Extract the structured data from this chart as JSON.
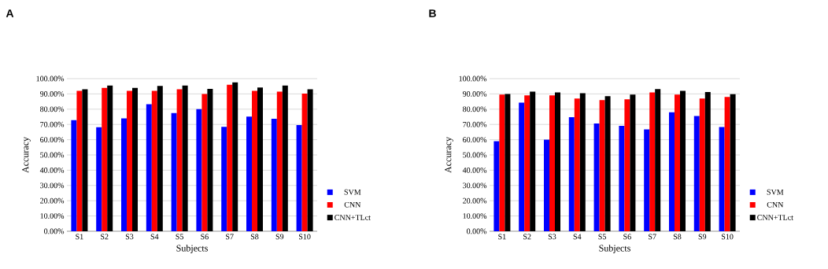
{
  "chart_data": [
    {
      "type": "bar",
      "title": "A",
      "xlabel": "Subjects",
      "ylabel": "Accuracy",
      "categories": [
        "S1",
        "S2",
        "S3",
        "S4",
        "S5",
        "S6",
        "S7",
        "S8",
        "S9",
        "S10"
      ],
      "series": [
        {
          "name": "SVM",
          "color": "#0000ff",
          "values": [
            72.8,
            68.2,
            74,
            83.2,
            77.4,
            80,
            68.4,
            75.1,
            73.7,
            69.6
          ]
        },
        {
          "name": "CNN",
          "color": "#ff0000",
          "values": [
            92,
            94,
            92,
            92,
            93,
            90,
            96,
            92,
            91.5,
            90.2
          ]
        },
        {
          "name": "CNN+TLct",
          "color": "#000000",
          "values": [
            93,
            95.5,
            94,
            95.2,
            95.5,
            93.3,
            97.5,
            94.2,
            95.5,
            93
          ]
        }
      ],
      "ylim": [
        0,
        100
      ],
      "yticks": [
        {
          "value": 0,
          "label": "0.00%"
        },
        {
          "value": 10,
          "label": "10.00%"
        },
        {
          "value": 20,
          "label": "20.00%"
        },
        {
          "value": 30,
          "label": "30.00%"
        },
        {
          "value": 40,
          "label": "40.00%"
        },
        {
          "value": 50,
          "label": "50.00%"
        },
        {
          "value": 60,
          "label": "60.00%"
        },
        {
          "value": 70,
          "label": "70.00%"
        },
        {
          "value": 80,
          "label": "80.00%"
        },
        {
          "value": 90,
          "label": "90.00%"
        },
        {
          "value": 100,
          "label": "100.00%"
        }
      ],
      "grid": "y",
      "legend": "right"
    },
    {
      "type": "bar",
      "title": "B",
      "xlabel": "Subjects",
      "ylabel": "Accuracy",
      "categories": [
        "S1",
        "S2",
        "S3",
        "S4",
        "S5",
        "S6",
        "S7",
        "S8",
        "S9",
        "S10"
      ],
      "series": [
        {
          "name": "SVM",
          "color": "#0000ff",
          "values": [
            59,
            84.3,
            60,
            74.8,
            70.6,
            69.1,
            66.8,
            78,
            75.5,
            68.3
          ]
        },
        {
          "name": "CNN",
          "color": "#ff0000",
          "values": [
            89.5,
            89,
            89,
            87,
            86,
            86.5,
            91,
            89.5,
            87,
            88
          ]
        },
        {
          "name": "CNN+TLct",
          "color": "#000000",
          "values": [
            90,
            91.5,
            91,
            90.5,
            88.5,
            89.5,
            93.2,
            92,
            91.2,
            89.8
          ]
        }
      ],
      "ylim": [
        0,
        100
      ],
      "yticks": [
        {
          "value": 0,
          "label": "0.00%"
        },
        {
          "value": 10,
          "label": "10.00%"
        },
        {
          "value": 20,
          "label": "20.00%"
        },
        {
          "value": 30,
          "label": "30.00%"
        },
        {
          "value": 40,
          "label": "40.00%"
        },
        {
          "value": 50,
          "label": "50.00%"
        },
        {
          "value": 60,
          "label": "60.00%"
        },
        {
          "value": 70,
          "label": "70.00%"
        },
        {
          "value": 80,
          "label": "80.00%"
        },
        {
          "value": 90,
          "label": "90.00%"
        },
        {
          "value": 100,
          "label": "100.00%"
        }
      ],
      "grid": "y",
      "legend": "right"
    }
  ]
}
